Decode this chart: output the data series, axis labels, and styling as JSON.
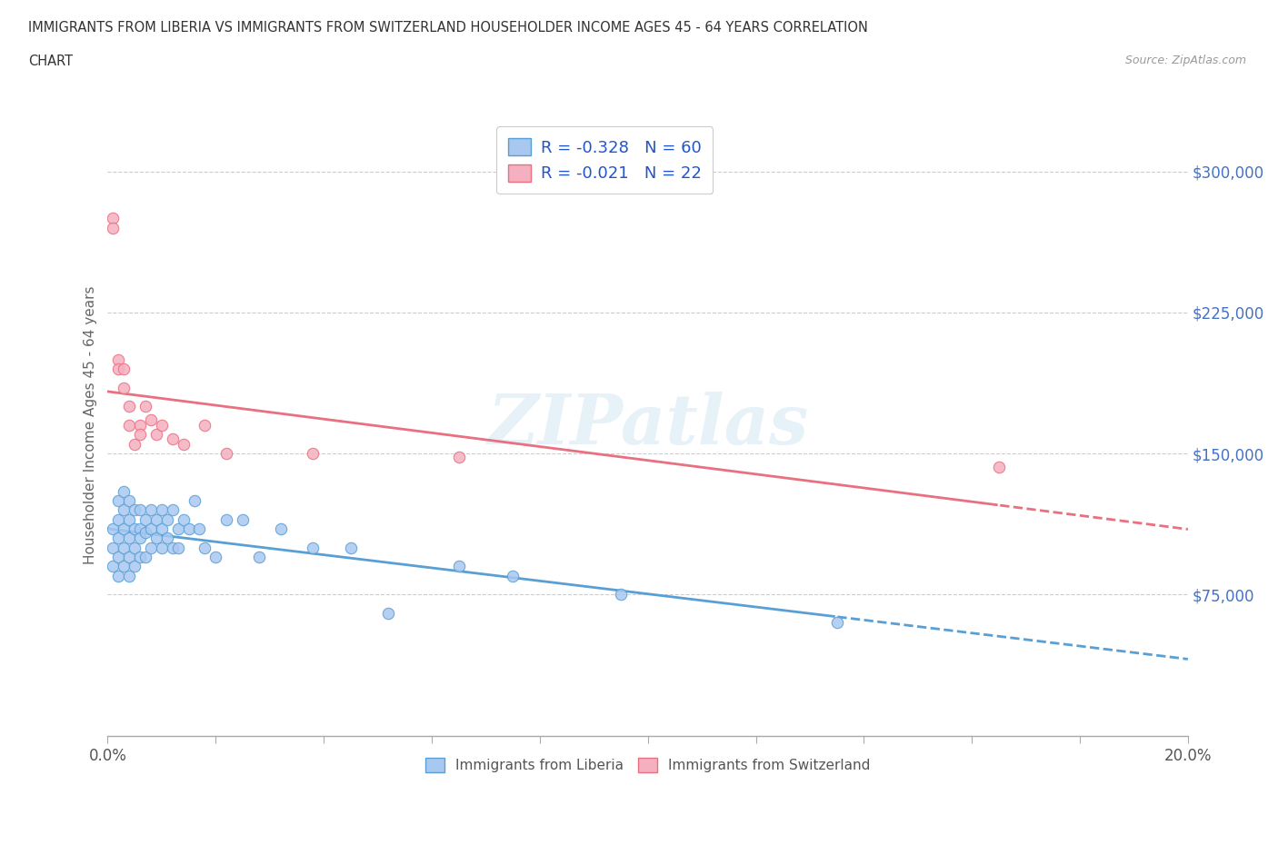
{
  "title_line1": "IMMIGRANTS FROM LIBERIA VS IMMIGRANTS FROM SWITZERLAND HOUSEHOLDER INCOME AGES 45 - 64 YEARS CORRELATION",
  "title_line2": "CHART",
  "source": "Source: ZipAtlas.com",
  "liberia_color": "#a8c8f0",
  "switzerland_color": "#f5b0c0",
  "liberia_line_color": "#5a9fd4",
  "switzerland_line_color": "#e87080",
  "liberia_R": -0.328,
  "liberia_N": 60,
  "switzerland_R": -0.021,
  "switzerland_N": 22,
  "xlim": [
    0.0,
    0.2
  ],
  "ylim": [
    0,
    330000
  ],
  "yticks": [
    0,
    75000,
    150000,
    225000,
    300000
  ],
  "ytick_labels": [
    "",
    "$75,000",
    "$150,000",
    "$225,000",
    "$300,000"
  ],
  "watermark": "ZIPatlas",
  "background_color": "#ffffff",
  "liberia_x": [
    0.001,
    0.001,
    0.001,
    0.002,
    0.002,
    0.002,
    0.002,
    0.002,
    0.003,
    0.003,
    0.003,
    0.003,
    0.003,
    0.004,
    0.004,
    0.004,
    0.004,
    0.004,
    0.005,
    0.005,
    0.005,
    0.005,
    0.006,
    0.006,
    0.006,
    0.006,
    0.007,
    0.007,
    0.007,
    0.008,
    0.008,
    0.008,
    0.009,
    0.009,
    0.01,
    0.01,
    0.01,
    0.011,
    0.011,
    0.012,
    0.012,
    0.013,
    0.013,
    0.014,
    0.015,
    0.016,
    0.017,
    0.018,
    0.02,
    0.022,
    0.025,
    0.028,
    0.032,
    0.038,
    0.045,
    0.052,
    0.065,
    0.075,
    0.095,
    0.135
  ],
  "liberia_y": [
    110000,
    100000,
    90000,
    125000,
    115000,
    105000,
    95000,
    85000,
    130000,
    120000,
    110000,
    100000,
    90000,
    125000,
    115000,
    105000,
    95000,
    85000,
    120000,
    110000,
    100000,
    90000,
    120000,
    110000,
    105000,
    95000,
    115000,
    108000,
    95000,
    120000,
    110000,
    100000,
    115000,
    105000,
    120000,
    110000,
    100000,
    115000,
    105000,
    120000,
    100000,
    110000,
    100000,
    115000,
    110000,
    125000,
    110000,
    100000,
    95000,
    115000,
    115000,
    95000,
    110000,
    100000,
    100000,
    65000,
    90000,
    85000,
    75000,
    60000
  ],
  "switzerland_x": [
    0.001,
    0.001,
    0.002,
    0.002,
    0.003,
    0.003,
    0.004,
    0.004,
    0.005,
    0.006,
    0.006,
    0.007,
    0.008,
    0.009,
    0.01,
    0.012,
    0.014,
    0.018,
    0.022,
    0.038,
    0.065,
    0.165
  ],
  "switzerland_y": [
    275000,
    270000,
    200000,
    195000,
    195000,
    185000,
    175000,
    165000,
    155000,
    165000,
    160000,
    175000,
    168000,
    160000,
    165000,
    158000,
    155000,
    165000,
    150000,
    150000,
    148000,
    143000
  ]
}
